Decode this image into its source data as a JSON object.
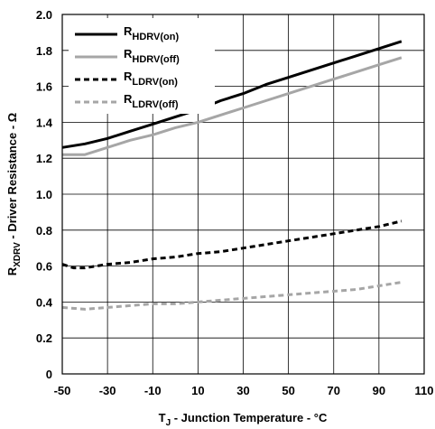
{
  "chart_data": {
    "type": "line",
    "title": "",
    "xlabel": {
      "main": "T",
      "sub": "J",
      "rest": " - Junction Temperature - °C"
    },
    "ylabel": {
      "main": "R",
      "sub": "XDRV",
      "rest": " - Driver Resistance - Ω"
    },
    "xlim": [
      -50,
      110
    ],
    "ylim": [
      0,
      2.0
    ],
    "x_ticks": [
      -50,
      -30,
      -10,
      10,
      30,
      50,
      70,
      90,
      110
    ],
    "y_ticks": [
      "0",
      "0.2",
      "0.4",
      "0.6",
      "0.8",
      "1.0",
      "1.2",
      "1.4",
      "1.6",
      "1.8",
      "2.0"
    ],
    "grid": true,
    "legend_position": "top-left",
    "series": [
      {
        "name": {
          "main": "R",
          "sub": "HDRV(on)"
        },
        "color": "#000000",
        "style": "solid",
        "x": [
          -50,
          -40,
          -30,
          -20,
          -10,
          0,
          10,
          20,
          30,
          40,
          50,
          60,
          70,
          80,
          90,
          100
        ],
        "y": [
          1.26,
          1.28,
          1.31,
          1.35,
          1.39,
          1.43,
          1.47,
          1.52,
          1.56,
          1.61,
          1.65,
          1.69,
          1.73,
          1.77,
          1.81,
          1.85
        ]
      },
      {
        "name": {
          "main": "R",
          "sub": "HDRV(off)"
        },
        "color": "#a6a6a6",
        "style": "solid",
        "x": [
          -50,
          -40,
          -30,
          -20,
          -10,
          0,
          10,
          20,
          30,
          40,
          50,
          60,
          70,
          80,
          90,
          100
        ],
        "y": [
          1.22,
          1.22,
          1.26,
          1.3,
          1.33,
          1.37,
          1.4,
          1.44,
          1.48,
          1.52,
          1.56,
          1.6,
          1.64,
          1.68,
          1.72,
          1.76
        ]
      },
      {
        "name": {
          "main": "R",
          "sub": "LDRV(on)"
        },
        "color": "#000000",
        "style": "dashed",
        "x": [
          -50,
          -45,
          -40,
          -35,
          -30,
          -20,
          -10,
          0,
          10,
          20,
          30,
          40,
          50,
          60,
          70,
          80,
          90,
          100
        ],
        "y": [
          0.61,
          0.59,
          0.59,
          0.6,
          0.61,
          0.62,
          0.64,
          0.65,
          0.67,
          0.68,
          0.7,
          0.72,
          0.74,
          0.76,
          0.78,
          0.8,
          0.82,
          0.85
        ]
      },
      {
        "name": {
          "main": "R",
          "sub": "LDRV(off)"
        },
        "color": "#a6a6a6",
        "style": "dashed",
        "x": [
          -50,
          -40,
          -30,
          -20,
          -10,
          0,
          10,
          20,
          30,
          40,
          50,
          60,
          70,
          80,
          90,
          100
        ],
        "y": [
          0.37,
          0.36,
          0.37,
          0.38,
          0.39,
          0.39,
          0.4,
          0.41,
          0.42,
          0.43,
          0.44,
          0.45,
          0.46,
          0.47,
          0.49,
          0.51
        ]
      }
    ]
  }
}
